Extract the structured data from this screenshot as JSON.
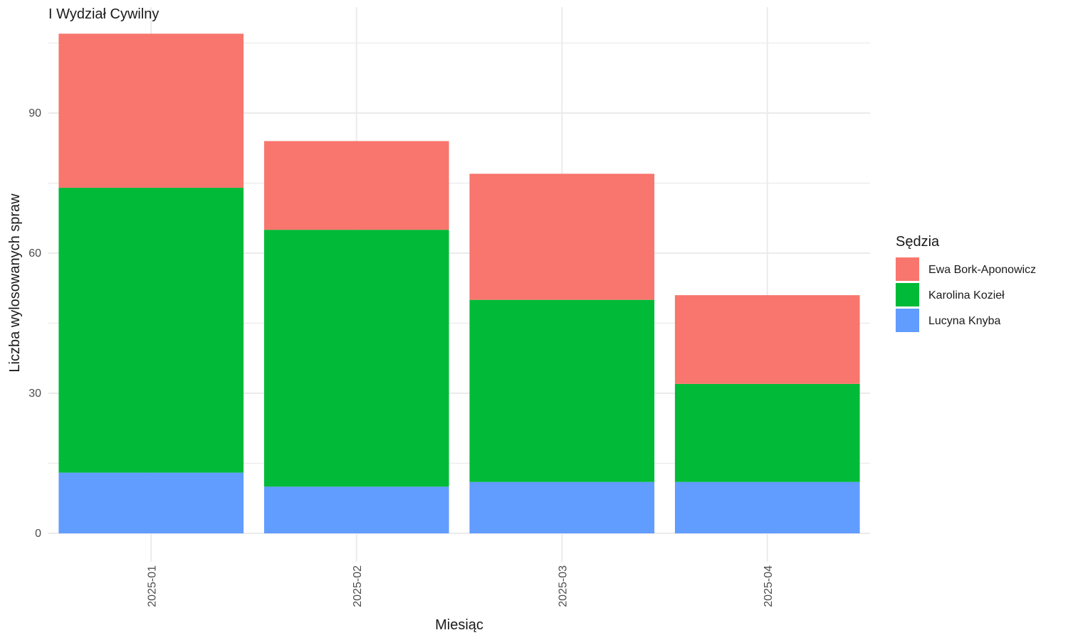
{
  "chart_data": {
    "type": "bar",
    "stacked": true,
    "title": "I Wydział Cywilny",
    "xlabel": "Miesiąc",
    "ylabel": "Liczba wylosowanych spraw",
    "categories": [
      "2025-01",
      "2025-02",
      "2025-03",
      "2025-04"
    ],
    "series": [
      {
        "name": "Lucyna Knyba",
        "color": "#619CFF",
        "values": [
          13,
          10,
          11,
          11
        ]
      },
      {
        "name": "Karolina Kozieł",
        "color": "#00BA38",
        "values": [
          61,
          55,
          39,
          21
        ]
      },
      {
        "name": "Ewa Bork-Aponowicz",
        "color": "#F8766D",
        "values": [
          33,
          19,
          27,
          19
        ]
      }
    ],
    "ylim": [
      0,
      112
    ],
    "yticks": [
      0,
      30,
      60,
      90
    ],
    "legend": {
      "title": "Sędzia",
      "position": "right",
      "order": [
        "Ewa Bork-Aponowicz",
        "Karolina Kozieł",
        "Lucyna Knyba"
      ]
    },
    "grid": true
  }
}
